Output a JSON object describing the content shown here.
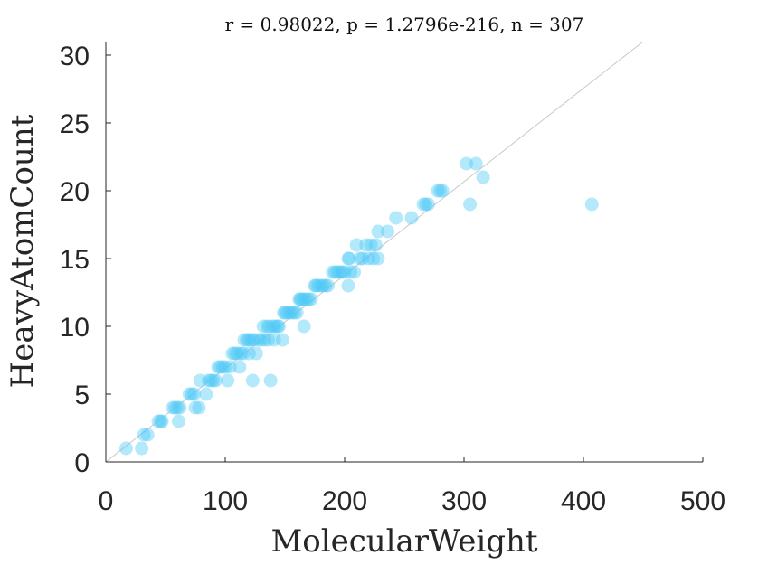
{
  "chart_data": {
    "type": "scatter",
    "title": "r = 0.98022, p = 1.2796e-216, n = 307",
    "xlabel": "MolecularWeight",
    "ylabel": "HeavyAtomCount",
    "xlim": [
      0,
      500
    ],
    "ylim": [
      0,
      31
    ],
    "xticks": [
      0,
      100,
      200,
      300,
      400,
      500
    ],
    "yticks": [
      0,
      5,
      10,
      15,
      20,
      25,
      30
    ],
    "grid": false,
    "reference_line": {
      "from": [
        0,
        0
      ],
      "to": [
        450,
        31
      ]
    },
    "series": [
      {
        "color": "#4dc9f6",
        "points": [
          [
            17,
            1
          ],
          [
            30,
            1
          ],
          [
            32,
            2
          ],
          [
            35,
            2
          ],
          [
            44,
            3
          ],
          [
            46,
            3
          ],
          [
            47,
            3
          ],
          [
            56,
            4
          ],
          [
            58,
            4
          ],
          [
            60,
            4
          ],
          [
            62,
            4
          ],
          [
            61,
            3
          ],
          [
            70,
            5
          ],
          [
            72,
            5
          ],
          [
            74,
            5
          ],
          [
            75,
            4
          ],
          [
            78,
            4
          ],
          [
            79,
            6
          ],
          [
            84,
            5
          ],
          [
            86,
            6
          ],
          [
            88,
            6
          ],
          [
            90,
            6
          ],
          [
            92,
            6
          ],
          [
            94,
            7
          ],
          [
            96,
            7
          ],
          [
            98,
            7
          ],
          [
            100,
            7
          ],
          [
            102,
            6
          ],
          [
            104,
            7
          ],
          [
            106,
            8
          ],
          [
            108,
            8
          ],
          [
            110,
            8
          ],
          [
            112,
            7
          ],
          [
            113,
            8
          ],
          [
            115,
            8
          ],
          [
            116,
            9
          ],
          [
            118,
            9
          ],
          [
            120,
            9
          ],
          [
            120,
            8
          ],
          [
            122,
            9
          ],
          [
            124,
            9
          ],
          [
            123,
            6
          ],
          [
            126,
            8
          ],
          [
            128,
            9
          ],
          [
            130,
            9
          ],
          [
            132,
            10
          ],
          [
            133,
            9
          ],
          [
            135,
            10
          ],
          [
            136,
            9
          ],
          [
            137,
            10
          ],
          [
            138,
            6
          ],
          [
            140,
            10
          ],
          [
            141,
            9
          ],
          [
            142,
            10
          ],
          [
            144,
            10
          ],
          [
            145,
            10
          ],
          [
            148,
            9
          ],
          [
            149,
            11
          ],
          [
            150,
            11
          ],
          [
            152,
            11
          ],
          [
            154,
            11
          ],
          [
            156,
            11
          ],
          [
            158,
            11
          ],
          [
            160,
            11
          ],
          [
            162,
            12
          ],
          [
            163,
            12
          ],
          [
            164,
            12
          ],
          [
            166,
            12
          ],
          [
            166,
            10
          ],
          [
            168,
            12
          ],
          [
            170,
            12
          ],
          [
            172,
            12
          ],
          [
            175,
            13
          ],
          [
            176,
            13
          ],
          [
            178,
            13
          ],
          [
            180,
            13
          ],
          [
            182,
            13
          ],
          [
            184,
            13
          ],
          [
            186,
            13
          ],
          [
            190,
            14
          ],
          [
            192,
            14
          ],
          [
            194,
            14
          ],
          [
            196,
            14
          ],
          [
            198,
            14
          ],
          [
            200,
            14
          ],
          [
            203,
            13
          ],
          [
            203,
            15
          ],
          [
            204,
            15
          ],
          [
            205,
            14
          ],
          [
            208,
            14
          ],
          [
            210,
            16
          ],
          [
            213,
            15
          ],
          [
            215,
            15
          ],
          [
            218,
            16
          ],
          [
            220,
            15
          ],
          [
            222,
            16
          ],
          [
            224,
            15
          ],
          [
            226,
            16
          ],
          [
            228,
            17
          ],
          [
            228,
            15
          ],
          [
            236,
            17
          ],
          [
            243,
            18
          ],
          [
            256,
            18
          ],
          [
            266,
            19
          ],
          [
            268,
            19
          ],
          [
            270,
            19
          ],
          [
            278,
            20
          ],
          [
            280,
            20
          ],
          [
            282,
            20
          ],
          [
            302,
            22
          ],
          [
            305,
            19
          ],
          [
            310,
            22
          ],
          [
            316,
            21
          ],
          [
            407,
            19
          ]
        ]
      }
    ]
  }
}
